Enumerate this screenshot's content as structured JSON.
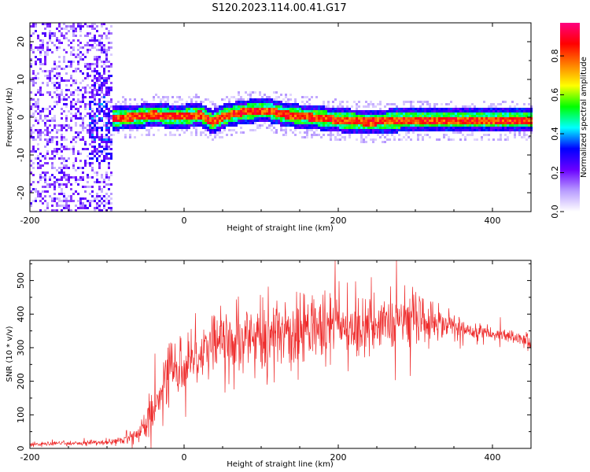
{
  "title": "S120.2023.114.00.41.G17",
  "colors": {
    "snr_line": "#ee2b2b",
    "signal_core": "#ff2a2a",
    "noise_purple": "#7a2cff"
  },
  "chart_data": [
    {
      "type": "heatmap",
      "xlabel": "Height of straight line (km)",
      "ylabel": "Frequency (Hz)",
      "xlim": [
        -200,
        450
      ],
      "ylim": [
        -25,
        25
      ],
      "x_ticks": [
        -200,
        0,
        200,
        400
      ],
      "y_ticks": [
        -20,
        -10,
        0,
        10,
        20
      ],
      "colorbar": {
        "label": "Normalized spectral amplitude",
        "range": [
          0,
          0.97
        ],
        "ticks": [
          "0.0",
          "0.2",
          "0.4",
          "0.6",
          "0.8"
        ],
        "colormap": [
          "#ffffff",
          "#b89cff",
          "#6a00ff",
          "#0000ff",
          "#00ffff",
          "#00ff00",
          "#ffff00",
          "#ff8000",
          "#ff0000",
          "#ff0080"
        ]
      },
      "signal_track": {
        "x": [
          -90,
          -60,
          -40,
          -20,
          0,
          20,
          35,
          50,
          70,
          90,
          110,
          130,
          150,
          170,
          200,
          240,
          280,
          320,
          360,
          400,
          445
        ],
        "freq": [
          0,
          0.5,
          1,
          0.5,
          0.5,
          1,
          -1,
          0.5,
          1.5,
          2,
          2,
          1,
          0.5,
          0.2,
          -0.5,
          -1,
          -0.5,
          -0.5,
          -0.5,
          -0.5,
          -0.5
        ]
      },
      "noise_region_x": [
        -200,
        -95
      ]
    },
    {
      "type": "line",
      "xlabel": "Height of straight line (km)",
      "ylabel": "SNR (10 * v/v)",
      "xlim": [
        -200,
        450
      ],
      "ylim": [
        0,
        560
      ],
      "x_ticks": [
        -200,
        0,
        200,
        400
      ],
      "y_ticks": [
        0,
        100,
        200,
        300,
        400,
        500
      ],
      "series": [
        {
          "envelope_x": [
            -200,
            -150,
            -100,
            -80,
            -60,
            -50,
            -40,
            -30,
            -20,
            -10,
            0,
            20,
            40,
            60,
            80,
            100,
            130,
            160,
            190,
            220,
            250,
            280,
            310,
            340,
            370,
            400,
            430,
            450
          ],
          "envelope_mean": [
            12,
            15,
            18,
            25,
            45,
            70,
            120,
            180,
            220,
            240,
            260,
            290,
            310,
            320,
            325,
            330,
            340,
            350,
            360,
            370,
            375,
            380,
            385,
            370,
            350,
            340,
            330,
            315
          ],
          "envelope_spread": [
            6,
            6,
            8,
            10,
            20,
            35,
            60,
            80,
            90,
            90,
            85,
            85,
            90,
            90,
            90,
            90,
            90,
            90,
            90,
            90,
            85,
            80,
            60,
            40,
            25,
            20,
            18,
            30
          ]
        }
      ]
    }
  ]
}
